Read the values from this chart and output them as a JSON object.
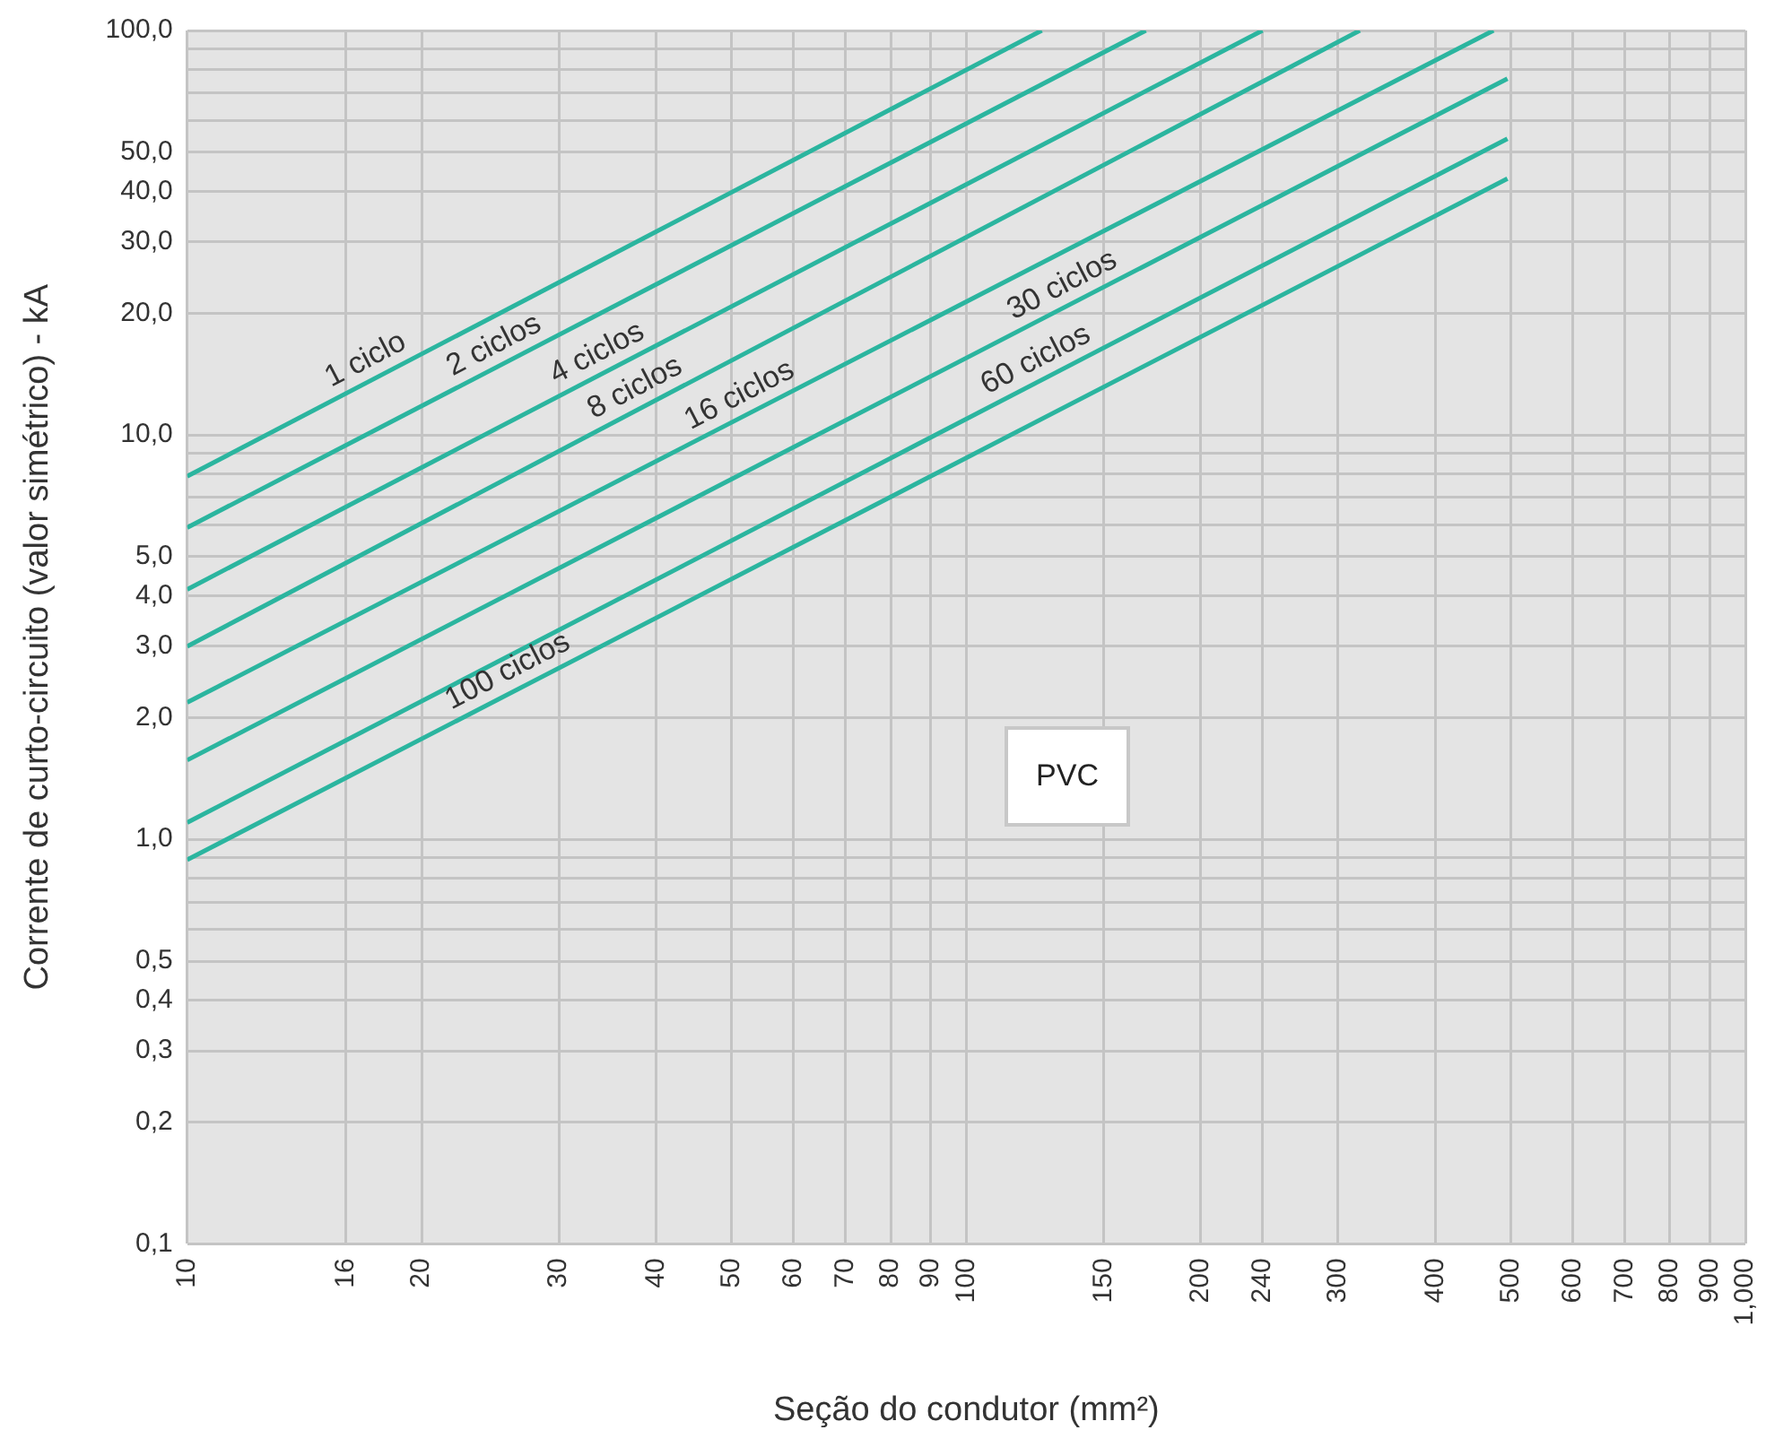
{
  "chart_data": {
    "type": "line",
    "xlabel": "Seção do condutor (mm²)",
    "ylabel": "Corrente de curto-circuito (valor simétrico) - kA",
    "log": "xy",
    "grid": true,
    "legend": false,
    "xlim": [
      10,
      1000
    ],
    "ylim": [
      0.1,
      100
    ],
    "xticks": [
      10,
      16,
      20,
      30,
      40,
      50,
      60,
      70,
      80,
      90,
      100,
      150,
      200,
      240,
      300,
      400,
      500,
      600,
      700,
      800,
      900,
      {
        "value": 1000,
        "label": "1,000"
      }
    ],
    "yticks": [
      {
        "value": 0.1,
        "label": "0,1"
      },
      {
        "value": 0.2,
        "label": "0,2"
      },
      {
        "value": 0.3,
        "label": "0,3"
      },
      {
        "value": 0.4,
        "label": "0,4"
      },
      {
        "value": 0.5,
        "label": "0,5"
      },
      {
        "value": 0.6,
        "label": null
      },
      {
        "value": 0.7,
        "label": null
      },
      {
        "value": 0.8,
        "label": null
      },
      {
        "value": 0.9,
        "label": null
      },
      {
        "value": 1,
        "label": "1,0"
      },
      {
        "value": 2,
        "label": "2,0"
      },
      {
        "value": 3,
        "label": "3,0"
      },
      {
        "value": 4,
        "label": "4,0"
      },
      {
        "value": 5,
        "label": "5,0"
      },
      {
        "value": 6,
        "label": null
      },
      {
        "value": 7,
        "label": null
      },
      {
        "value": 8,
        "label": null
      },
      {
        "value": 9,
        "label": null
      },
      {
        "value": 10,
        "label": "10,0"
      },
      {
        "value": 20,
        "label": "20,0"
      },
      {
        "value": 30,
        "label": "30,0"
      },
      {
        "value": 40,
        "label": "40,0"
      },
      {
        "value": 50,
        "label": "50,0"
      },
      {
        "value": 60,
        "label": null
      },
      {
        "value": 70,
        "label": null
      },
      {
        "value": 80,
        "label": null
      },
      {
        "value": 90,
        "label": null
      },
      {
        "value": 100,
        "label": "100,0"
      }
    ],
    "annotations": [
      "PVC"
    ],
    "series": [
      {
        "name": "1 ciclo",
        "color": "#2bb59f",
        "x": [
          10,
          125
        ],
        "values": [
          7.9,
          100
        ]
      },
      {
        "name": "2 ciclos",
        "color": "#2bb59f",
        "x": [
          10,
          170
        ],
        "values": [
          5.9,
          100
        ]
      },
      {
        "name": "4 ciclos",
        "color": "#2bb59f",
        "x": [
          10,
          240
        ],
        "values": [
          4.15,
          100
        ]
      },
      {
        "name": "8 ciclos",
        "color": "#2bb59f",
        "x": [
          10,
          320
        ],
        "values": [
          3.0,
          100
        ]
      },
      {
        "name": "16 ciclos",
        "color": "#2bb59f",
        "x": [
          10,
          475
        ],
        "values": [
          2.18,
          100
        ]
      },
      {
        "name": "30 ciclos",
        "color": "#2bb59f",
        "x": [
          10,
          495
        ],
        "values": [
          1.57,
          76
        ]
      },
      {
        "name": "60 ciclos",
        "color": "#2bb59f",
        "x": [
          10,
          495
        ],
        "values": [
          1.1,
          54
        ]
      },
      {
        "name": "100 ciclos",
        "color": "#2bb59f",
        "x": [
          10,
          495
        ],
        "values": [
          0.89,
          43
        ]
      }
    ]
  }
}
